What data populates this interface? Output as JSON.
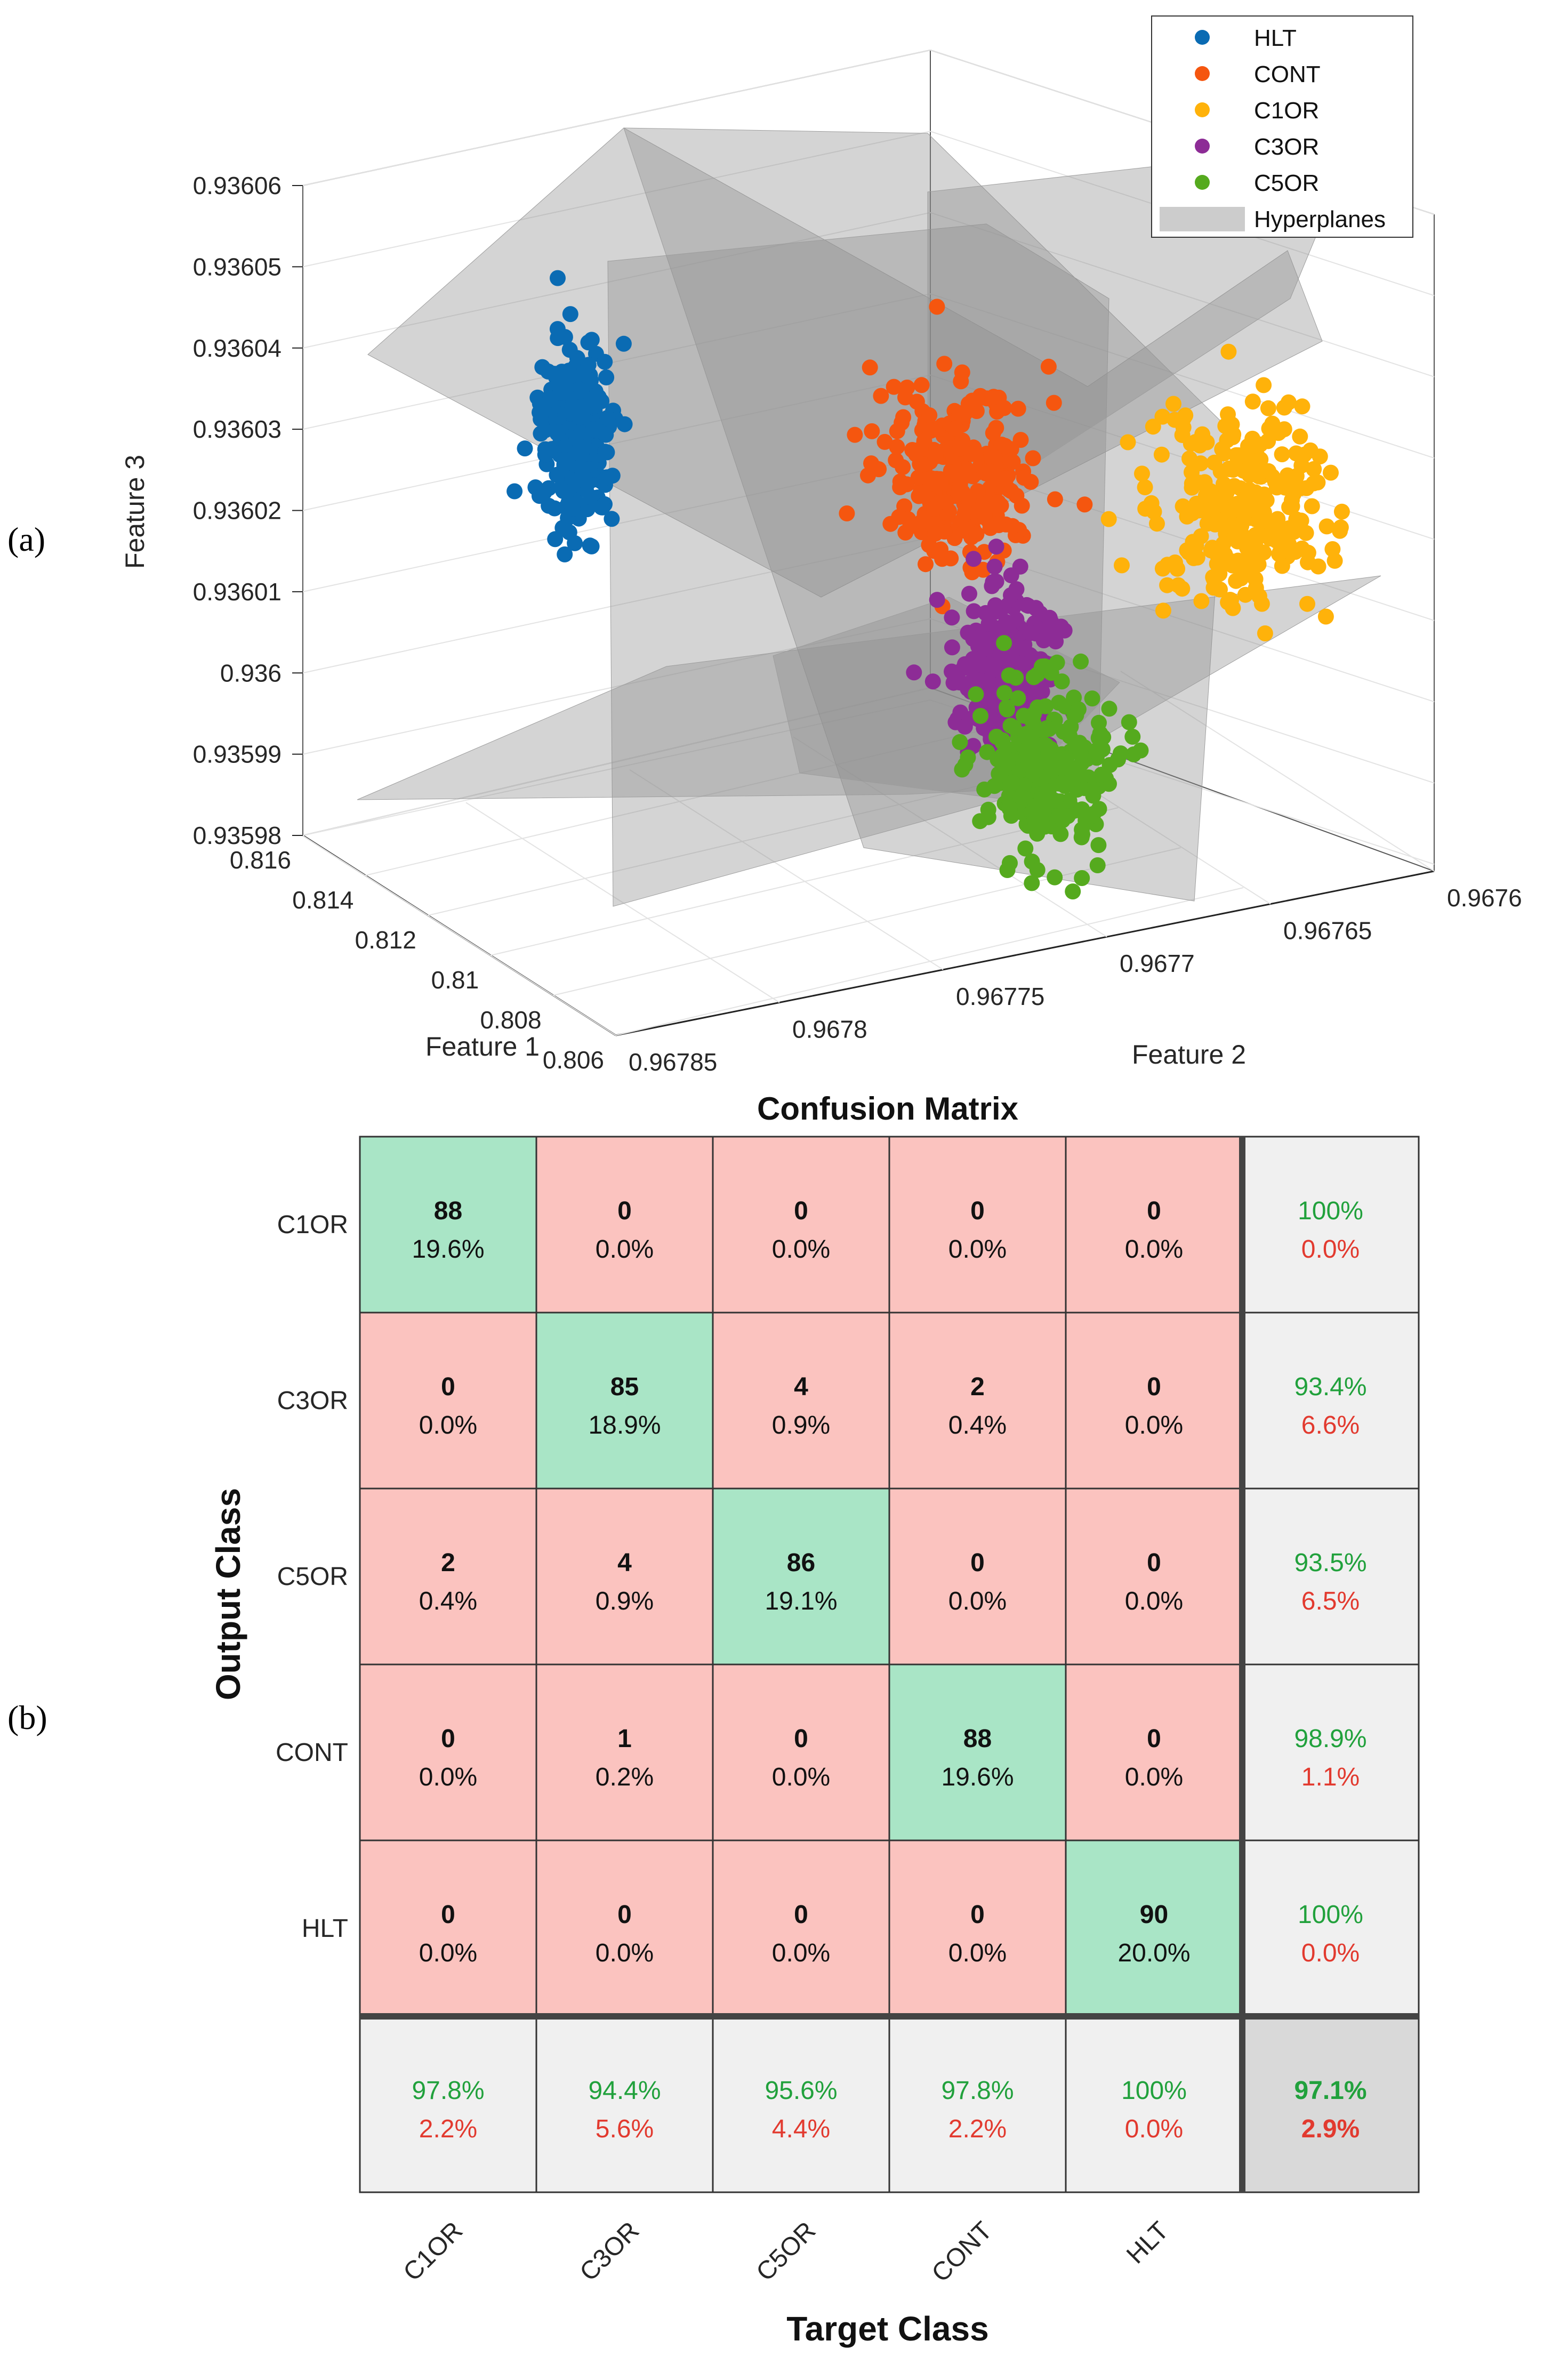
{
  "panels": {
    "a": "(a)",
    "b": "(b)"
  },
  "colors": {
    "HLT": "#0a6bb3",
    "CONT": "#f5560f",
    "C1OR": "#ffb20a",
    "C3OR": "#8d2c96",
    "C5OR": "#55aa1e",
    "plane": "#8f8f8f",
    "green_cell": "#a9e5c6",
    "red_cell": "#fbc3bf",
    "grey_cell": "#f0f0f0",
    "dark_cell": "#d9d9d9",
    "pct_green": "#21a13c",
    "pct_red": "#e23a2f"
  },
  "chart_data": [
    {
      "type": "scatter",
      "dimensions": 3,
      "zlabel": "Feature 3",
      "xlabel": "Feature 1",
      "ylabel": "Feature 2",
      "zlim": [
        0.93598,
        0.93606
      ],
      "zticks": [
        "0.93606",
        "0.93605",
        "0.93604",
        "0.93603",
        "0.93602",
        "0.93601",
        "0.936",
        "0.93599",
        "0.93598"
      ],
      "xlim": [
        0.806,
        0.816
      ],
      "xticks": [
        "0.816",
        "0.814",
        "0.812",
        "0.81",
        "0.808",
        "0.806"
      ],
      "ylim": [
        0.9676,
        0.96785
      ],
      "yticks": [
        "0.96785",
        "0.9678",
        "0.96775",
        "0.9677",
        "0.96765",
        "0.9676"
      ],
      "grid": true,
      "legend_position": "top-right",
      "legend": [
        "HLT",
        "CONT",
        "C1OR",
        "C3OR",
        "C5OR",
        "Hyperplanes"
      ],
      "series": [
        {
          "name": "HLT",
          "n": 90,
          "feature1_mean": 0.8145,
          "feature2_mean": 0.96782,
          "feature3_mean": 0.93603
        },
        {
          "name": "CONT",
          "n": 90,
          "feature1_mean": 0.8105,
          "feature2_mean": 0.96777,
          "feature3_mean": 0.936025
        },
        {
          "name": "C1OR",
          "n": 90,
          "feature1_mean": 0.8065,
          "feature2_mean": 0.96766,
          "feature3_mean": 0.936025
        },
        {
          "name": "C3OR",
          "n": 90,
          "feature1_mean": 0.8085,
          "feature2_mean": 0.96775,
          "feature3_mean": 0.936
        },
        {
          "name": "C5OR",
          "n": 90,
          "feature1_mean": 0.808,
          "feature2_mean": 0.96772,
          "feature3_mean": 0.93599
        }
      ]
    },
    {
      "type": "heatmap",
      "title": "Confusion Matrix",
      "xlabel": "Target Class",
      "ylabel": "Output Class",
      "classes": [
        "C1OR",
        "C3OR",
        "C5OR",
        "CONT",
        "HLT"
      ],
      "counts": [
        [
          88,
          0,
          0,
          0,
          0
        ],
        [
          0,
          85,
          4,
          2,
          0
        ],
        [
          2,
          4,
          86,
          0,
          0
        ],
        [
          0,
          1,
          0,
          88,
          0
        ],
        [
          0,
          0,
          0,
          0,
          90
        ]
      ],
      "percents": [
        [
          "19.6%",
          "0.0%",
          "0.0%",
          "0.0%",
          "0.0%"
        ],
        [
          "0.0%",
          "18.9%",
          "0.9%",
          "0.4%",
          "0.0%"
        ],
        [
          "0.4%",
          "0.9%",
          "19.1%",
          "0.0%",
          "0.0%"
        ],
        [
          "0.0%",
          "0.2%",
          "0.0%",
          "19.6%",
          "0.0%"
        ],
        [
          "0.0%",
          "0.0%",
          "0.0%",
          "0.0%",
          "20.0%"
        ]
      ],
      "row_summary": [
        [
          "100%",
          "0.0%"
        ],
        [
          "93.4%",
          "6.6%"
        ],
        [
          "93.5%",
          "6.5%"
        ],
        [
          "98.9%",
          "1.1%"
        ],
        [
          "100%",
          "0.0%"
        ]
      ],
      "col_summary": [
        [
          "97.8%",
          "2.2%"
        ],
        [
          "94.4%",
          "5.6%"
        ],
        [
          "95.6%",
          "4.4%"
        ],
        [
          "97.8%",
          "2.2%"
        ],
        [
          "100%",
          "0.0%"
        ]
      ],
      "overall": [
        "97.1%",
        "2.9%"
      ]
    }
  ]
}
